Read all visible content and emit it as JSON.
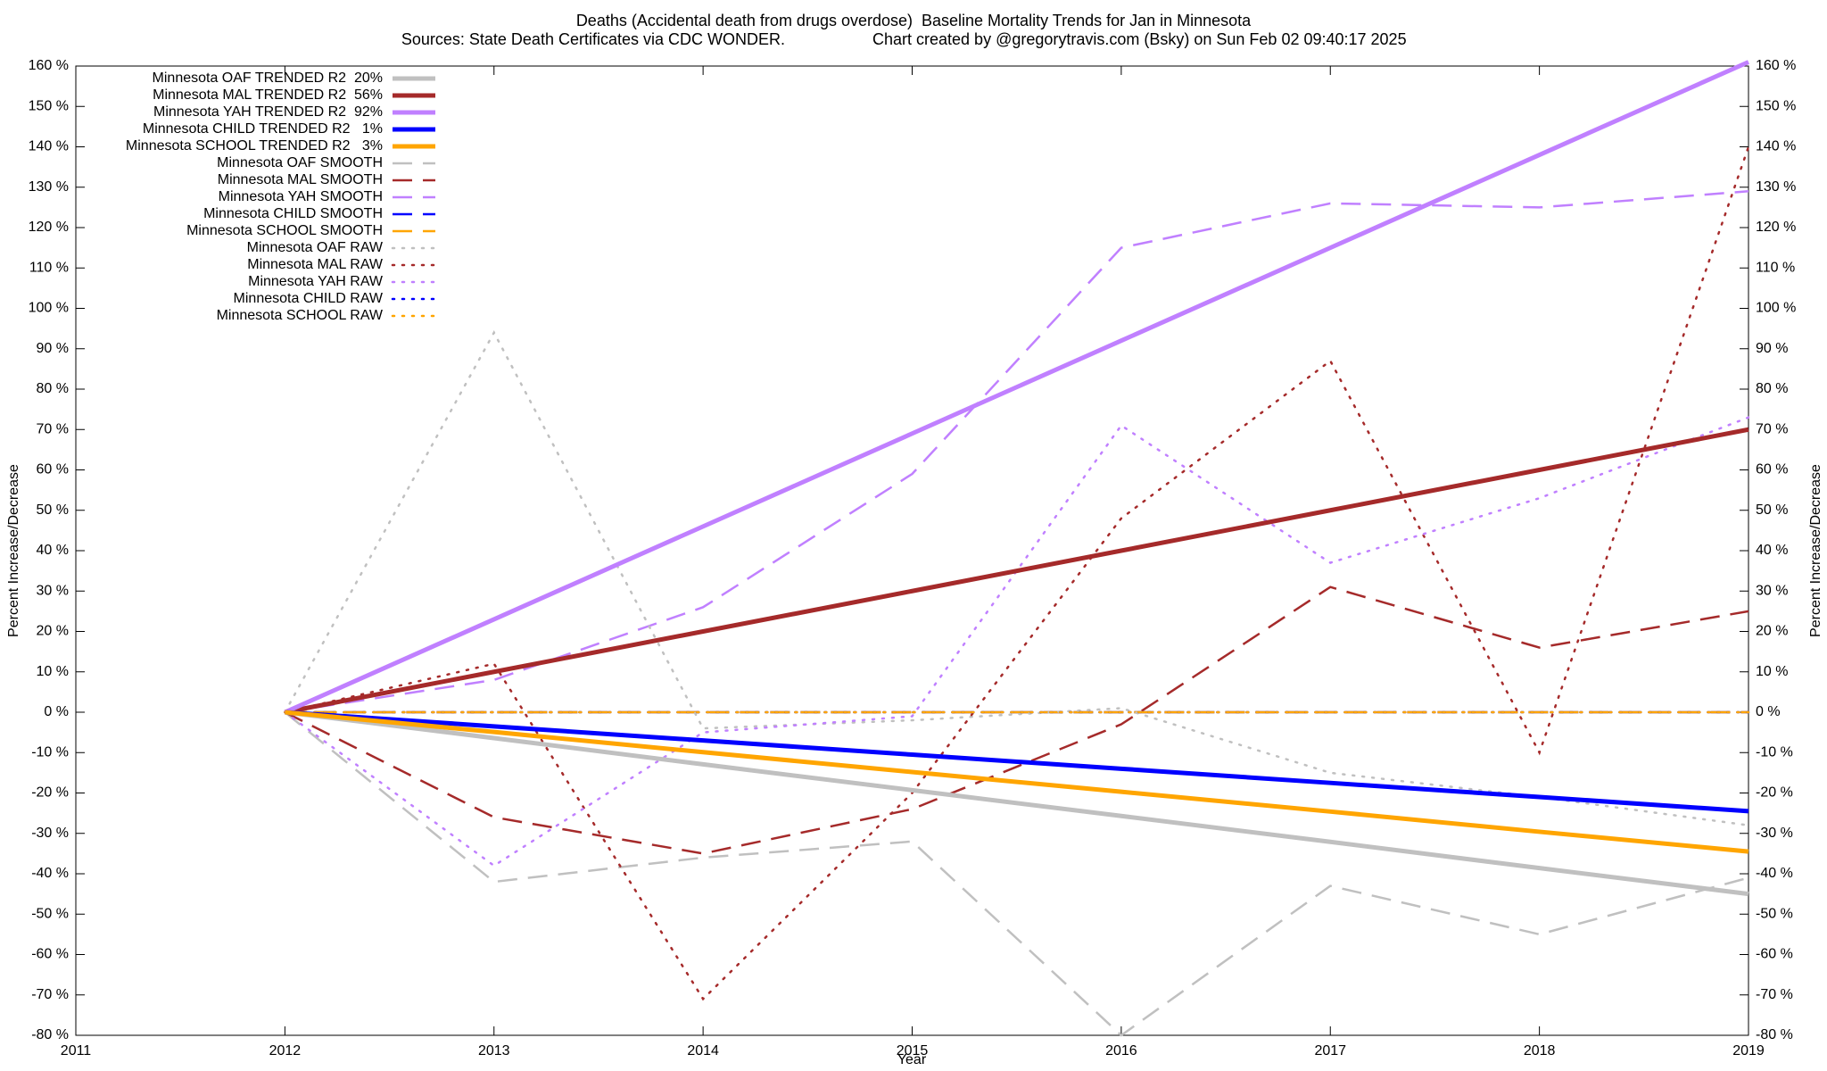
{
  "chart_data": {
    "type": "line",
    "title": "Deaths (Accidental death from drugs overdose)  Baseline Mortality Trends for Jan in Minnesota",
    "subtitle": "Sources: State Death Certificates via CDC WONDER.",
    "credit": "Chart created by @gregorytravis.com (Bsky) on Sun Feb 02 09:40:17 2025",
    "x_label": "Year",
    "y_label": "Percent Increase/Decrease",
    "y2_label": "Percent Increase/Decrease",
    "x": [
      2012,
      2013,
      2014,
      2015,
      2016,
      2017,
      2018,
      2019
    ],
    "xlim": [
      2011,
      2019
    ],
    "xticks": [
      2011,
      2012,
      2013,
      2014,
      2015,
      2016,
      2017,
      2018,
      2019
    ],
    "ylim": [
      -80,
      160
    ],
    "yticks": [
      {
        "value": -80,
        "label": "-80 %"
      },
      {
        "value": -70,
        "label": "-70 %"
      },
      {
        "value": -60,
        "label": "-60 %"
      },
      {
        "value": -50,
        "label": "-50 %"
      },
      {
        "value": -40,
        "label": "-40 %"
      },
      {
        "value": -30,
        "label": "-30 %"
      },
      {
        "value": -20,
        "label": "-20 %"
      },
      {
        "value": -10,
        "label": "-10 %"
      },
      {
        "value": 0,
        "label": "0 %"
      },
      {
        "value": 10,
        "label": "10 %"
      },
      {
        "value": 20,
        "label": "20 %"
      },
      {
        "value": 30,
        "label": "30 %"
      },
      {
        "value": 40,
        "label": "40 %"
      },
      {
        "value": 50,
        "label": "50 %"
      },
      {
        "value": 60,
        "label": "60 %"
      },
      {
        "value": 70,
        "label": "70 %"
      },
      {
        "value": 80,
        "label": "80 %"
      },
      {
        "value": 90,
        "label": "90 %"
      },
      {
        "value": 100,
        "label": "100 %"
      },
      {
        "value": 110,
        "label": "110 %"
      },
      {
        "value": 120,
        "label": "120 %"
      },
      {
        "value": 130,
        "label": "130 %"
      },
      {
        "value": 140,
        "label": "140 %"
      },
      {
        "value": 150,
        "label": "150 %"
      },
      {
        "value": 160,
        "label": "160 %"
      }
    ],
    "y2lim": [
      -80,
      160
    ],
    "y2ticks": [
      {
        "value": -80,
        "label": "-80 %"
      },
      {
        "value": -70,
        "label": "-70 %"
      },
      {
        "value": -60,
        "label": "-60 %"
      },
      {
        "value": -50,
        "label": "-50 %"
      },
      {
        "value": -40,
        "label": "-40 %"
      },
      {
        "value": -30,
        "label": "-30 %"
      },
      {
        "value": -20,
        "label": "-20 %"
      },
      {
        "value": -10,
        "label": "-10 %"
      },
      {
        "value": 0,
        "label": "0 %"
      },
      {
        "value": 10,
        "label": "10 %"
      },
      {
        "value": 20,
        "label": "20 %"
      },
      {
        "value": 30,
        "label": "30 %"
      },
      {
        "value": 40,
        "label": "40 %"
      },
      {
        "value": 50,
        "label": "50 %"
      },
      {
        "value": 60,
        "label": "60 %"
      },
      {
        "value": 70,
        "label": "70 %"
      },
      {
        "value": 80,
        "label": "80 %"
      },
      {
        "value": 90,
        "label": "90 %"
      },
      {
        "value": 100,
        "label": "100 %"
      },
      {
        "value": 110,
        "label": "110 %"
      },
      {
        "value": 120,
        "label": "120 %"
      },
      {
        "value": 130,
        "label": "130 %"
      },
      {
        "value": 140,
        "label": "140 %"
      },
      {
        "value": 150,
        "label": "150 %"
      },
      {
        "value": 160,
        "label": "160 %"
      }
    ],
    "legend": "top-left",
    "grid": false,
    "series": [
      {
        "name": "Minnesota OAF TRENDED R2  20%",
        "color": "#c0c0c0",
        "style": "solid",
        "values": [
          0,
          -6.4,
          -12.9,
          -19.3,
          -25.7,
          -32.1,
          -38.6,
          -45
        ]
      },
      {
        "name": "Minnesota MAL TRENDED R2  56%",
        "color": "#a52a2a",
        "style": "solid",
        "values": [
          0,
          10,
          20,
          30,
          40,
          50,
          60,
          70
        ]
      },
      {
        "name": "Minnesota YAH TRENDED R2  92%",
        "color": "#c080ff",
        "style": "solid",
        "values": [
          0,
          23,
          46,
          69,
          92,
          115,
          138,
          161
        ]
      },
      {
        "name": "Minnesota CHILD TRENDED R2   1%",
        "color": "#0000ff",
        "style": "solid",
        "values": [
          0,
          -3.5,
          -7,
          -10.5,
          -14,
          -17.5,
          -21,
          -24.5
        ]
      },
      {
        "name": "Minnesota SCHOOL TRENDED R2   3%",
        "color": "#ffa500",
        "style": "solid",
        "values": [
          0,
          -4.9,
          -9.9,
          -14.8,
          -19.7,
          -24.6,
          -29.6,
          -34.5
        ]
      },
      {
        "name": "Minnesota OAF SMOOTH",
        "color": "#c0c0c0",
        "style": "dashed",
        "values": [
          0,
          -42,
          -36,
          -32,
          -80,
          -43,
          -55,
          -41
        ]
      },
      {
        "name": "Minnesota MAL SMOOTH",
        "color": "#a52a2a",
        "style": "dashed",
        "values": [
          0,
          -26,
          -35,
          -24,
          -3,
          31,
          16,
          25
        ]
      },
      {
        "name": "Minnesota YAH SMOOTH",
        "color": "#c080ff",
        "style": "dashed",
        "values": [
          0,
          8,
          26,
          59,
          115,
          126,
          125,
          129
        ]
      },
      {
        "name": "Minnesota CHILD SMOOTH",
        "color": "#0000ff",
        "style": "dashed",
        "values": [
          0,
          0,
          0,
          0,
          0,
          0,
          0,
          0
        ]
      },
      {
        "name": "Minnesota SCHOOL SMOOTH",
        "color": "#ffa500",
        "style": "dashed",
        "values": [
          0,
          0,
          0,
          0,
          0,
          0,
          0,
          0
        ]
      },
      {
        "name": "Minnesota OAF RAW",
        "color": "#c0c0c0",
        "style": "dotted",
        "values": [
          0,
          94,
          -4,
          -2,
          1,
          -15,
          -21,
          -28
        ]
      },
      {
        "name": "Minnesota MAL RAW",
        "color": "#a52a2a",
        "style": "dotted",
        "values": [
          0,
          12,
          -71,
          -20,
          48,
          87,
          -10,
          140
        ]
      },
      {
        "name": "Minnesota YAH RAW",
        "color": "#c080ff",
        "style": "dotted",
        "values": [
          0,
          -38,
          -5,
          -1,
          71,
          37,
          53,
          73
        ]
      },
      {
        "name": "Minnesota CHILD RAW",
        "color": "#0000ff",
        "style": "dotted",
        "values": [
          0,
          0,
          0,
          0,
          0,
          0,
          0,
          0
        ]
      },
      {
        "name": "Minnesota SCHOOL RAW",
        "color": "#ffa500",
        "style": "dotted",
        "values": [
          0,
          0,
          0,
          0,
          0,
          0,
          0,
          0
        ]
      }
    ]
  }
}
